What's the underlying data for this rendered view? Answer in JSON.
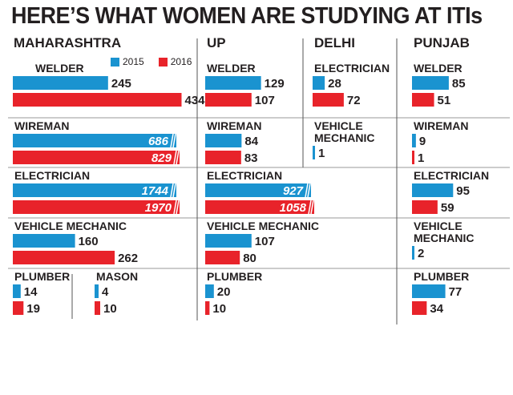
{
  "title": "HERE’S WHAT WOMEN ARE STUDYING AT ITIs",
  "columns": [
    "MAHARASHTRA",
    "UP",
    "DELHI",
    "PUNJAB"
  ],
  "legend": [
    {
      "label": "2015",
      "color": "#1a93d0"
    },
    {
      "label": "2016",
      "color": "#e8232a"
    }
  ],
  "chart_data": {
    "type": "bar",
    "title": "HERE’S WHAT WOMEN ARE STUDYING AT ITIs",
    "series_names": [
      "2015",
      "2016"
    ],
    "colors": {
      "2015": "#1a93d0",
      "2016": "#e8232a"
    },
    "data": {
      "Maharashtra": {
        "WELDER": [
          245,
          434
        ],
        "WIREMAN": [
          686,
          829
        ],
        "ELECTRICIAN": [
          1744,
          1970
        ],
        "VEHICLE MECHANIC": [
          160,
          262
        ],
        "PLUMBER": [
          14,
          19
        ],
        "MASON": [
          4,
          10
        ]
      },
      "UP": {
        "WELDER": [
          129,
          107
        ],
        "WIREMAN": [
          84,
          83
        ],
        "ELECTRICIAN": [
          927,
          1058
        ],
        "VEHICLE MECHANIC": [
          107,
          80
        ],
        "PLUMBER": [
          20,
          10
        ]
      },
      "Delhi": {
        "ELECTRICIAN": [
          28,
          72
        ],
        "VEHICLE MECHANIC": [
          1
        ]
      },
      "Punjab": {
        "WELDER": [
          85,
          51
        ],
        "WIREMAN": [
          9,
          1
        ],
        "ELECTRICIAN": [
          95,
          59
        ],
        "VEHICLE MECHANIC": [
          2
        ],
        "PLUMBER": [
          77,
          34
        ]
      }
    },
    "broken_axis_values": [
      686,
      829,
      1744,
      1970,
      927,
      1058
    ]
  },
  "groups": [
    {
      "col": 0,
      "row": 0,
      "label": "WELDER",
      "values": [
        245,
        434
      ]
    },
    {
      "col": 1,
      "row": 0,
      "label": "WELDER",
      "values": [
        129,
        107
      ]
    },
    {
      "col": 2,
      "row": 0,
      "label": "ELECTRICIAN",
      "values": [
        28,
        72
      ]
    },
    {
      "col": 3,
      "row": 0,
      "label": "WELDER",
      "values": [
        85,
        51
      ]
    },
    {
      "col": 0,
      "row": 1,
      "label": "WIREMAN",
      "values": [
        686,
        829
      ],
      "broken": true
    },
    {
      "col": 1,
      "row": 1,
      "label": "WIREMAN",
      "values": [
        84,
        83
      ]
    },
    {
      "col": 2,
      "row": 1,
      "label": "VEHICLE MECHANIC",
      "label_lines": [
        "VEHICLE",
        "MECHANIC"
      ],
      "values": [
        1
      ]
    },
    {
      "col": 3,
      "row": 1,
      "label": "WIREMAN",
      "values": [
        9,
        1
      ]
    },
    {
      "col": 0,
      "row": 2,
      "label": "ELECTRICIAN",
      "values": [
        1744,
        1970
      ],
      "broken": true
    },
    {
      "col": 1,
      "row": 2,
      "label": "ELECTRICIAN",
      "values": [
        927,
        1058
      ],
      "broken": true
    },
    {
      "col": 3,
      "row": 2,
      "label": "ELECTRICIAN",
      "values": [
        95,
        59
      ]
    },
    {
      "col": 0,
      "row": 3,
      "label": "VEHICLE MECHANIC",
      "values": [
        160,
        262
      ]
    },
    {
      "col": 1,
      "row": 3,
      "label": "VEHICLE MECHANIC",
      "values": [
        107,
        80
      ]
    },
    {
      "col": 3,
      "row": 3,
      "label": "VEHICLE MECHANIC",
      "label_lines": [
        "VEHICLE",
        "MECHANIC"
      ],
      "values": [
        2
      ]
    },
    {
      "col": 0,
      "row": 4,
      "label": "PLUMBER",
      "values": [
        14,
        19
      ]
    },
    {
      "col": 0,
      "row": 4,
      "sub": 1,
      "label": "MASON",
      "values": [
        4,
        10
      ]
    },
    {
      "col": 1,
      "row": 4,
      "label": "PLUMBER",
      "values": [
        20,
        10
      ]
    },
    {
      "col": 3,
      "row": 4,
      "label": "PLUMBER",
      "values": [
        77,
        34
      ]
    }
  ]
}
